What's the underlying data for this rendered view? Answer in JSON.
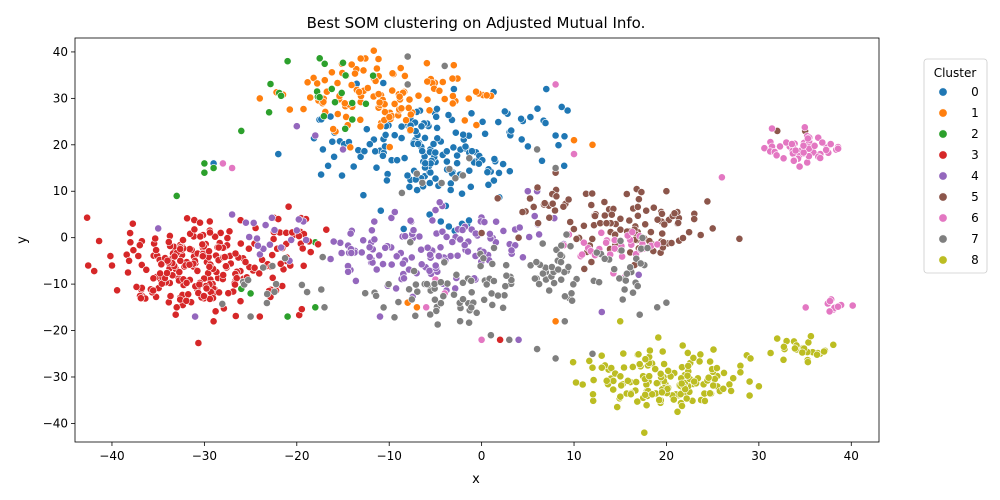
{
  "chart_data": {
    "type": "scatter",
    "title": "Best SOM clustering on Adjusted Mutual Info.",
    "xlabel": "x",
    "ylabel": "y",
    "xlim": [
      -44,
      43
    ],
    "ylim": [
      -44,
      43
    ],
    "xticks": [
      -40,
      -30,
      -20,
      -10,
      0,
      10,
      20,
      30,
      40
    ],
    "yticks": [
      -40,
      -30,
      -20,
      -10,
      0,
      10,
      20,
      30,
      40
    ],
    "grid": false,
    "legend": {
      "title": "Cluster",
      "position": "right"
    },
    "series": [
      {
        "name": "0",
        "color": "#1f77b4",
        "clusters": [
          {
            "cx": -5,
            "cy": 18,
            "sx": 5.5,
            "sy": 5,
            "n": 160
          },
          {
            "cx": 4,
            "cy": 25,
            "sx": 2.5,
            "sy": 2,
            "n": 12
          },
          {
            "cx": -4,
            "cy": 3,
            "sx": 2.5,
            "sy": 1.5,
            "n": 10
          }
        ],
        "points": [
          [
            -3,
            32
          ],
          [
            7,
            32
          ],
          [
            8,
            22
          ],
          [
            -22,
            18
          ],
          [
            -29,
            16
          ]
        ]
      },
      {
        "name": "1",
        "color": "#ff7f0e",
        "clusters": [
          {
            "cx": -12,
            "cy": 31,
            "sx": 4.5,
            "sy": 4,
            "n": 110
          },
          {
            "cx": -1,
            "cy": 30,
            "sx": 1.5,
            "sy": 1,
            "n": 8
          }
        ],
        "points": [
          [
            -24,
            30
          ],
          [
            10,
            21
          ],
          [
            12,
            20
          ],
          [
            -7,
            -15
          ],
          [
            8,
            -18
          ],
          [
            -8,
            -14
          ]
        ]
      },
      {
        "name": "2",
        "color": "#2ca02c",
        "clusters": [
          {
            "cx": -17,
            "cy": 31,
            "sx": 3,
            "sy": 3.5,
            "n": 18
          }
        ],
        "points": [
          [
            -26,
            23
          ],
          [
            -23,
            27
          ],
          [
            -21,
            38
          ],
          [
            -30,
            16
          ],
          [
            -30,
            14
          ],
          [
            -33,
            9
          ],
          [
            -14,
            29
          ],
          [
            -25,
            -12
          ],
          [
            -26,
            -11
          ],
          [
            -21,
            -17
          ],
          [
            -18,
            -15
          ],
          [
            -18,
            -1
          ],
          [
            -29,
            15
          ]
        ]
      },
      {
        "name": "3",
        "color": "#d62728",
        "clusters": [
          {
            "cx": -31,
            "cy": -6,
            "sx": 4.5,
            "sy": 4.5,
            "n": 230
          },
          {
            "cx": -21,
            "cy": 0,
            "sx": 2,
            "sy": 3,
            "n": 25
          }
        ],
        "points": [
          [
            -40,
            -6
          ],
          [
            -38,
            -1
          ],
          [
            -33,
            -15
          ],
          [
            -29,
            -18
          ],
          [
            -24,
            -17
          ],
          [
            -11,
            -17
          ],
          [
            2,
            -22
          ],
          [
            -22,
            4
          ],
          [
            -19,
            4
          ]
        ]
      },
      {
        "name": "4",
        "color": "#9467bd",
        "clusters": [
          {
            "cx": -7,
            "cy": -3,
            "sx": 5.5,
            "sy": 4,
            "n": 120
          },
          {
            "cx": 3,
            "cy": 0,
            "sx": 3,
            "sy": 4,
            "n": 20
          },
          {
            "cx": -22,
            "cy": 0,
            "sx": 3,
            "sy": 3,
            "n": 15
          }
        ],
        "points": [
          [
            -20,
            24
          ],
          [
            -15,
            19
          ],
          [
            -18,
            22
          ],
          [
            -35,
            2
          ],
          [
            -31,
            -17
          ],
          [
            -27,
            5
          ],
          [
            5,
            10
          ],
          [
            6,
            10
          ],
          [
            10,
            18
          ],
          [
            13,
            -16
          ],
          [
            20,
            -14
          ],
          [
            17,
            -8
          ],
          [
            -11,
            -17
          ],
          [
            4,
            -22
          ]
        ]
      },
      {
        "name": "5",
        "color": "#8c564b",
        "clusters": [
          {
            "cx": 16,
            "cy": 2,
            "sx": 4.5,
            "sy": 3.5,
            "n": 85
          },
          {
            "cx": 7,
            "cy": 7,
            "sx": 2,
            "sy": 2.5,
            "n": 22
          }
        ],
        "points": [
          [
            8,
            14
          ],
          [
            20,
            10
          ],
          [
            23,
            4
          ],
          [
            25,
            2
          ],
          [
            32,
            23
          ],
          [
            35,
            23
          ],
          [
            4,
            0
          ],
          [
            0,
            1
          ]
        ]
      },
      {
        "name": "6",
        "color": "#e377c2",
        "clusters": [
          {
            "cx": 34.5,
            "cy": 19,
            "sx": 2,
            "sy": 1.6,
            "n": 55
          },
          {
            "cx": 38,
            "cy": -15,
            "sx": 0.8,
            "sy": 1,
            "n": 10
          },
          {
            "cx": 15,
            "cy": -2,
            "sx": 3,
            "sy": 2.5,
            "n": 30
          }
        ],
        "points": [
          [
            26,
            13
          ],
          [
            -28,
            16
          ],
          [
            -27,
            15
          ],
          [
            8,
            33
          ],
          [
            -6,
            -15
          ],
          [
            10,
            18
          ],
          [
            0,
            -22
          ],
          [
            -4,
            -12
          ],
          [
            -5,
            -9
          ]
        ]
      },
      {
        "name": "7",
        "color": "#7f7f7f",
        "clusters": [
          {
            "cx": -2,
            "cy": -11,
            "sx": 4.5,
            "sy": 3,
            "n": 60
          },
          {
            "cx": 8,
            "cy": -7,
            "sx": 4.5,
            "sy": 3.5,
            "n": 50
          },
          {
            "cx": 15,
            "cy": -8,
            "sx": 3,
            "sy": 4,
            "n": 20
          },
          {
            "cx": -22,
            "cy": -10,
            "sx": 2.5,
            "sy": 3,
            "n": 15
          },
          {
            "cx": -4,
            "cy": 12,
            "sx": 2,
            "sy": 1.5,
            "n": 8
          }
        ],
        "points": [
          [
            -8,
            39
          ],
          [
            -4,
            37
          ],
          [
            -8,
            33
          ],
          [
            6,
            19
          ],
          [
            8,
            15
          ],
          [
            9,
            -18
          ],
          [
            8,
            -26
          ],
          [
            6,
            -24
          ],
          [
            3,
            -22
          ],
          [
            12,
            -25
          ],
          [
            20,
            -14
          ],
          [
            19,
            -15
          ],
          [
            -25,
            -17
          ],
          [
            -17,
            -15
          ],
          [
            1,
            -21
          ]
        ]
      },
      {
        "name": "8",
        "color": "#bcbd22",
        "clusters": [
          {
            "cx": 19,
            "cy": -31,
            "sx": 4,
            "sy": 3.5,
            "n": 150
          },
          {
            "cx": 34.5,
            "cy": -24.5,
            "sx": 1.8,
            "sy": 1.3,
            "n": 30
          }
        ],
        "points": [
          [
            29,
            -31
          ],
          [
            30,
            -32
          ],
          [
            29,
            -34
          ],
          [
            27,
            -33
          ],
          [
            28,
            -29
          ],
          [
            13,
            -28
          ],
          [
            12,
            -28
          ],
          [
            15,
            -18
          ]
        ]
      }
    ]
  }
}
